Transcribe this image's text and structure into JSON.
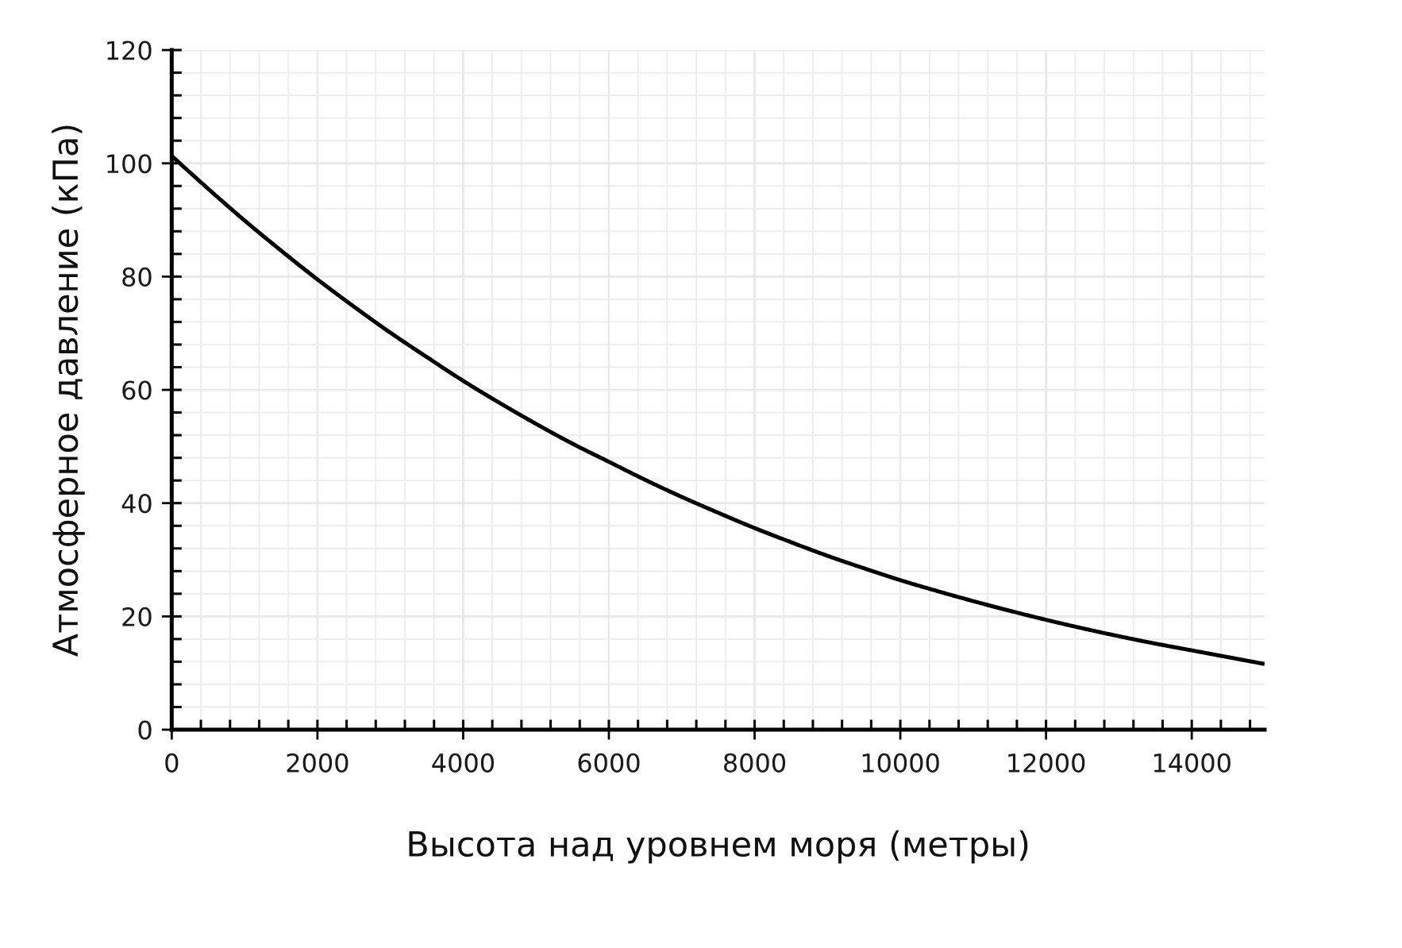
{
  "chart_data": {
    "type": "line",
    "xlabel": "Высота над уровнем моря (метры)",
    "ylabel": "Атмосферное давление (кПа)",
    "x": [
      0,
      500,
      1000,
      1500,
      2000,
      2500,
      3000,
      3500,
      4000,
      4500,
      5000,
      5500,
      6000,
      6500,
      7000,
      7500,
      8000,
      8500,
      9000,
      9500,
      10000,
      10500,
      11000,
      11500,
      12000,
      12500,
      13000,
      13500,
      14000,
      14500,
      15000
    ],
    "series": [
      {
        "color": "#000000",
        "values": [
          101.3,
          95.5,
          89.9,
          84.6,
          79.5,
          74.7,
          70.1,
          65.8,
          61.6,
          57.7,
          54.0,
          50.5,
          47.3,
          44.1,
          41.1,
          38.3,
          35.6,
          33.1,
          30.7,
          28.5,
          26.4,
          24.5,
          22.7,
          21.0,
          19.4,
          17.9,
          16.5,
          15.2,
          14.0,
          12.8,
          11.6
        ]
      }
    ],
    "xlim": [
      0,
      15000
    ],
    "ylim": [
      0,
      120
    ],
    "xticks": [
      0,
      {
        "value": 400,
        "label": null
      },
      {
        "value": 800,
        "label": null
      },
      {
        "value": 1200,
        "label": null
      },
      {
        "value": 1600,
        "label": null
      },
      2000,
      {
        "value": 2400,
        "label": null
      },
      {
        "value": 2800,
        "label": null
      },
      {
        "value": 3200,
        "label": null
      },
      {
        "value": 3600,
        "label": null
      },
      4000,
      {
        "value": 4400,
        "label": null
      },
      {
        "value": 4800,
        "label": null
      },
      {
        "value": 5200,
        "label": null
      },
      {
        "value": 5600,
        "label": null
      },
      6000,
      {
        "value": 6400,
        "label": null
      },
      {
        "value": 6800,
        "label": null
      },
      {
        "value": 7200,
        "label": null
      },
      {
        "value": 7600,
        "label": null
      },
      8000,
      {
        "value": 8400,
        "label": null
      },
      {
        "value": 8800,
        "label": null
      },
      {
        "value": 9200,
        "label": null
      },
      {
        "value": 9600,
        "label": null
      },
      10000,
      {
        "value": 10400,
        "label": null
      },
      {
        "value": 10800,
        "label": null
      },
      {
        "value": 11200,
        "label": null
      },
      {
        "value": 11600,
        "label": null
      },
      12000,
      {
        "value": 12400,
        "label": null
      },
      {
        "value": 12800,
        "label": null
      },
      {
        "value": 13200,
        "label": null
      },
      {
        "value": 13600,
        "label": null
      },
      14000,
      {
        "value": 14400,
        "label": null
      },
      {
        "value": 14800,
        "label": null
      }
    ],
    "yticks": [
      0,
      {
        "value": 4,
        "label": null
      },
      {
        "value": 8,
        "label": null
      },
      {
        "value": 12,
        "label": null
      },
      {
        "value": 16,
        "label": null
      },
      20,
      {
        "value": 24,
        "label": null
      },
      {
        "value": 28,
        "label": null
      },
      {
        "value": 32,
        "label": null
      },
      {
        "value": 36,
        "label": null
      },
      40,
      {
        "value": 44,
        "label": null
      },
      {
        "value": 48,
        "label": null
      },
      {
        "value": 52,
        "label": null
      },
      {
        "value": 56,
        "label": null
      },
      60,
      {
        "value": 64,
        "label": null
      },
      {
        "value": 68,
        "label": null
      },
      {
        "value": 72,
        "label": null
      },
      {
        "value": 76,
        "label": null
      },
      80,
      {
        "value": 84,
        "label": null
      },
      {
        "value": 88,
        "label": null
      },
      {
        "value": 92,
        "label": null
      },
      {
        "value": 96,
        "label": null
      },
      100,
      {
        "value": 104,
        "label": null
      },
      {
        "value": 108,
        "label": null
      },
      {
        "value": 112,
        "label": null
      },
      {
        "value": 116,
        "label": null
      },
      120
    ],
    "grid": true,
    "marker": "none",
    "line_style": "solid"
  }
}
